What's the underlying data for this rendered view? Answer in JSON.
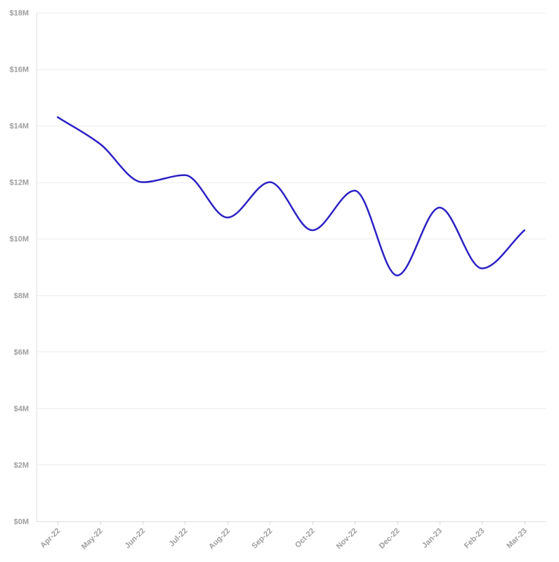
{
  "chart_data": {
    "type": "line",
    "title": "",
    "xlabel": "",
    "ylabel": "",
    "categories": [
      "Apr-22",
      "May-22",
      "Jun-22",
      "Jul-22",
      "Aug-22",
      "Sep-22",
      "Oct-22",
      "Nov-22",
      "Dec-22",
      "Jan-23",
      "Feb-23",
      "Mar-23"
    ],
    "series": [
      {
        "values": [
          14.3,
          13.35,
          12.0,
          12.25,
          10.75,
          12.0,
          10.3,
          11.7,
          8.7,
          11.1,
          8.95,
          10.3
        ],
        "color": "#2b21c4"
      }
    ],
    "ylim": [
      0,
      18
    ],
    "y_ticks": [
      0,
      2,
      4,
      6,
      8,
      10,
      12,
      14,
      16,
      18
    ],
    "y_tick_labels": [
      "$0M",
      "$2M",
      "$4M",
      "$6M",
      "$8M",
      "$10M",
      "$12M",
      "$14M",
      "$16M",
      "$18M"
    ],
    "grid": true,
    "legend": "none"
  }
}
